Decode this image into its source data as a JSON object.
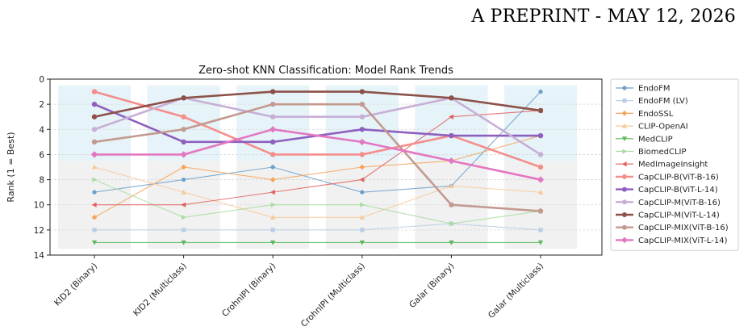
{
  "header": {
    "text": "A PREPRINT - MAY 12, 2026"
  },
  "chart_data": {
    "type": "line",
    "title": "Zero-shot KNN Classification: Model Rank Trends",
    "ylabel": "Rank (1 = Best)",
    "xlabel": "",
    "categories": [
      "KID2 (Binary)",
      "KID2 (Multiclass)",
      "CrohnIPI (Binary)",
      "CrohnIPI (Multiclass)",
      "Galar (Binary)",
      "Galar (Multiclass)"
    ],
    "ylim": [
      14,
      0
    ],
    "y_inverted": true,
    "yticks": [
      0,
      2,
      4,
      6,
      8,
      10,
      12,
      14
    ],
    "grid": "on",
    "legend_position": "right",
    "series": [
      {
        "name": "EndoFM",
        "values": [
          9,
          8,
          7,
          9,
          8.5,
          1
        ],
        "color": "#6a9fcc",
        "marker": "circle",
        "bold": false
      },
      {
        "name": "EndoFM (LV)",
        "values": [
          12,
          12,
          12,
          12,
          11.5,
          12
        ],
        "color": "#b9cde6",
        "marker": "square",
        "bold": false
      },
      {
        "name": "EndoSSL",
        "values": [
          11,
          7,
          8,
          7,
          6.5,
          4.5
        ],
        "color": "#f5a45a",
        "marker": "diamond",
        "bold": false
      },
      {
        "name": "CLIP-OpenAI",
        "values": [
          7,
          9,
          11,
          11,
          8.5,
          9
        ],
        "color": "#f7c998",
        "marker": "triangle-up",
        "bold": false
      },
      {
        "name": "MedCLIP",
        "values": [
          13,
          13,
          13,
          13,
          13,
          13
        ],
        "color": "#5cb85c",
        "marker": "triangle-down",
        "bold": false
      },
      {
        "name": "BiomedCLIP",
        "values": [
          8,
          11,
          10,
          10,
          11.5,
          10.5
        ],
        "color": "#a8dca0",
        "marker": "triangle-right",
        "bold": false
      },
      {
        "name": "MedImageInsight",
        "values": [
          10,
          10,
          9,
          8,
          3,
          2.5
        ],
        "color": "#e0605f",
        "marker": "triangle-left",
        "bold": false
      },
      {
        "name": "CapCLIP-B(ViT-B-16)",
        "values": [
          1,
          3,
          6,
          6,
          4.5,
          7
        ],
        "color": "#f48e8c",
        "marker": "circle",
        "bold": true
      },
      {
        "name": "CapCLIP-B(ViT-L-14)",
        "values": [
          2,
          5,
          5,
          4,
          4.5,
          4.5
        ],
        "color": "#8e5fbf",
        "marker": "circle",
        "bold": true
      },
      {
        "name": "CapCLIP-M(ViT-B-16)",
        "values": [
          4,
          1.5,
          3,
          3,
          1.5,
          6
        ],
        "color": "#c7afd6",
        "marker": "circle",
        "bold": true
      },
      {
        "name": "CapCLIP-M(ViT-L-14)",
        "values": [
          3,
          1.5,
          1,
          1,
          1.5,
          2.5
        ],
        "color": "#8c5149",
        "marker": "circle",
        "bold": true
      },
      {
        "name": "CapCLIP-MIX(ViT-B-16)",
        "values": [
          5,
          4,
          2,
          2,
          10,
          10.5
        ],
        "color": "#c39a90",
        "marker": "circle",
        "bold": true
      },
      {
        "name": "CapCLIP-MIX(ViT-L-14)",
        "values": [
          6,
          6,
          4,
          5,
          6.5,
          8
        ],
        "color": "#e377c2",
        "marker": "diamond",
        "bold": true
      }
    ]
  }
}
